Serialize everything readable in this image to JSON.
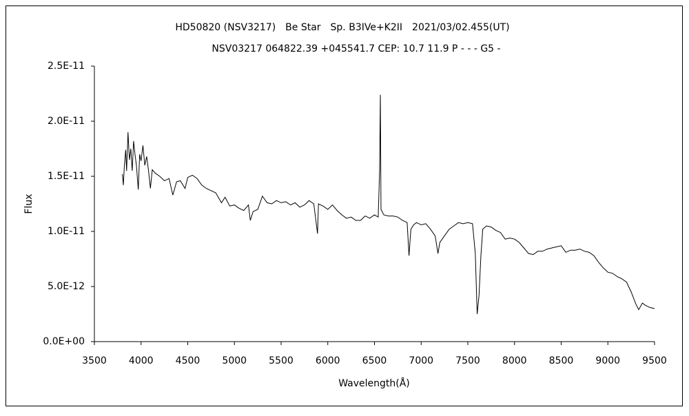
{
  "chart_data": {
    "type": "line",
    "title": "HD50820 (NSV3217)　Be Star　Sp. B3IVe+K2II　2021/03/02.455(UT)",
    "subtitle": "NSV03217 064822.39 +045541.7 CEP: 10.7 11.9 P - - - G5 -",
    "xlabel": "Wavelength(Å)",
    "ylabel": "Flux",
    "color": "#000000",
    "xlim": [
      3500,
      9500
    ],
    "xticks": [
      3500,
      4000,
      4500,
      5000,
      5500,
      6000,
      6500,
      7000,
      7500,
      8000,
      8500,
      9000,
      9500
    ],
    "ylim": [
      0,
      2.5e-11
    ],
    "yticks": [
      {
        "value": 0,
        "label": "0.0E+00"
      },
      {
        "value": 5e-12,
        "label": "5.0E-12"
      },
      {
        "value": 1e-11,
        "label": "1.0E-11"
      },
      {
        "value": 1.5e-11,
        "label": "1.5E-11"
      },
      {
        "value": 2e-11,
        "label": "2.0E-11"
      },
      {
        "value": 2.5e-11,
        "label": "2.5E-11"
      }
    ],
    "x": [
      3800,
      3810,
      3820,
      3835,
      3845,
      3860,
      3875,
      3890,
      3905,
      3920,
      3935,
      3950,
      3970,
      3985,
      4000,
      4020,
      4040,
      4060,
      4080,
      4100,
      4120,
      4150,
      4200,
      4250,
      4300,
      4340,
      4380,
      4420,
      4471,
      4500,
      4550,
      4600,
      4650,
      4700,
      4750,
      4800,
      4861,
      4900,
      4950,
      5000,
      5050,
      5100,
      5150,
      5170,
      5200,
      5250,
      5300,
      5350,
      5400,
      5450,
      5500,
      5550,
      5600,
      5650,
      5700,
      5750,
      5800,
      5850,
      5890,
      5900,
      5950,
      6000,
      6050,
      6100,
      6150,
      6200,
      6250,
      6300,
      6350,
      6400,
      6450,
      6500,
      6540,
      6555,
      6563,
      6570,
      6600,
      6650,
      6700,
      6750,
      6800,
      6850,
      6870,
      6890,
      6920,
      6950,
      7000,
      7050,
      7100,
      7150,
      7180,
      7200,
      7250,
      7300,
      7350,
      7400,
      7450,
      7500,
      7550,
      7580,
      7600,
      7620,
      7640,
      7660,
      7700,
      7750,
      7800,
      7850,
      7900,
      7950,
      8000,
      8050,
      8100,
      8150,
      8200,
      8250,
      8300,
      8350,
      8400,
      8450,
      8500,
      8550,
      8600,
      8650,
      8700,
      8750,
      8800,
      8850,
      8900,
      8950,
      9000,
      9050,
      9100,
      9150,
      9200,
      9250,
      9300,
      9330,
      9370,
      9400,
      9450,
      9500
    ],
    "values": [
      1.52e-11,
      1.42e-11,
      1.58e-11,
      1.74e-11,
      1.55e-11,
      1.9e-11,
      1.65e-11,
      1.75e-11,
      1.55e-11,
      1.82e-11,
      1.7e-11,
      1.6e-11,
      1.38e-11,
      1.7e-11,
      1.64e-11,
      1.78e-11,
      1.6e-11,
      1.68e-11,
      1.55e-11,
      1.39e-11,
      1.56e-11,
      1.53e-11,
      1.5e-11,
      1.46e-11,
      1.48e-11,
      1.33e-11,
      1.45e-11,
      1.46e-11,
      1.39e-11,
      1.49e-11,
      1.51e-11,
      1.48e-11,
      1.42e-11,
      1.39e-11,
      1.37e-11,
      1.35e-11,
      1.26e-11,
      1.31e-11,
      1.23e-11,
      1.24e-11,
      1.21e-11,
      1.19e-11,
      1.24e-11,
      1.1e-11,
      1.18e-11,
      1.2e-11,
      1.32e-11,
      1.26e-11,
      1.25e-11,
      1.28e-11,
      1.26e-11,
      1.27e-11,
      1.24e-11,
      1.26e-11,
      1.22e-11,
      1.24e-11,
      1.28e-11,
      1.25e-11,
      9.8e-12,
      1.25e-11,
      1.23e-11,
      1.2e-11,
      1.24e-11,
      1.19e-11,
      1.15e-11,
      1.12e-11,
      1.13e-11,
      1.1e-11,
      1.1e-11,
      1.14e-11,
      1.12e-11,
      1.15e-11,
      1.13e-11,
      1.55e-11,
      2.24e-11,
      1.2e-11,
      1.15e-11,
      1.14e-11,
      1.14e-11,
      1.13e-11,
      1.1e-11,
      1.08e-11,
      7.8e-12,
      1.02e-11,
      1.06e-11,
      1.08e-11,
      1.06e-11,
      1.07e-11,
      1.02e-11,
      9.6e-12,
      8e-12,
      9e-12,
      9.6e-12,
      1.02e-11,
      1.05e-11,
      1.08e-11,
      1.07e-11,
      1.08e-11,
      1.07e-11,
      8e-12,
      2.5e-12,
      4.2e-12,
      7.8e-12,
      1.02e-11,
      1.05e-11,
      1.04e-11,
      1.01e-11,
      9.9e-12,
      9.3e-12,
      9.4e-12,
      9.3e-12,
      9e-12,
      8.5e-12,
      8e-12,
      7.9e-12,
      8.2e-12,
      8.2e-12,
      8.4e-12,
      8.5e-12,
      8.6e-12,
      8.7e-12,
      8.1e-12,
      8.3e-12,
      8.3e-12,
      8.4e-12,
      8.2e-12,
      8.1e-12,
      7.8e-12,
      7.2e-12,
      6.7e-12,
      6.3e-12,
      6.2e-12,
      5.9e-12,
      5.7e-12,
      5.4e-12,
      4.5e-12,
      3.4e-12,
      2.9e-12,
      3.5e-12,
      3.3e-12,
      3.1e-12,
      3e-12
    ]
  }
}
